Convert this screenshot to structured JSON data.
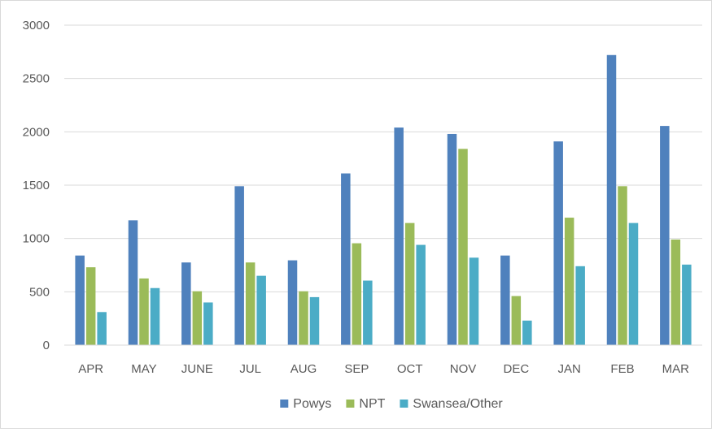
{
  "chart_data": {
    "type": "bar",
    "categories": [
      "APR",
      "MAY",
      "JUNE",
      "JUL",
      "AUG",
      "SEP",
      "OCT",
      "NOV",
      "DEC",
      "JAN",
      "FEB",
      "MAR"
    ],
    "series": [
      {
        "name": "Powys",
        "color": "#4f81bd",
        "values": [
          840,
          1170,
          775,
          1490,
          795,
          1610,
          2040,
          1980,
          840,
          1910,
          2720,
          2055
        ]
      },
      {
        "name": "NPT",
        "color": "#9bbb59",
        "values": [
          730,
          625,
          505,
          775,
          505,
          955,
          1145,
          1840,
          460,
          1195,
          1490,
          990
        ]
      },
      {
        "name": "Swansea/Other",
        "color": "#4bacc6",
        "values": [
          310,
          535,
          400,
          650,
          450,
          605,
          940,
          820,
          230,
          740,
          1145,
          755
        ]
      }
    ],
    "yticks": [
      "0",
      "500",
      "1000",
      "1500",
      "2000",
      "2500",
      "3000"
    ],
    "ylim": [
      0,
      3000
    ],
    "grid": true,
    "legend": "bottom",
    "title": "",
    "xlabel": "",
    "ylabel": ""
  }
}
